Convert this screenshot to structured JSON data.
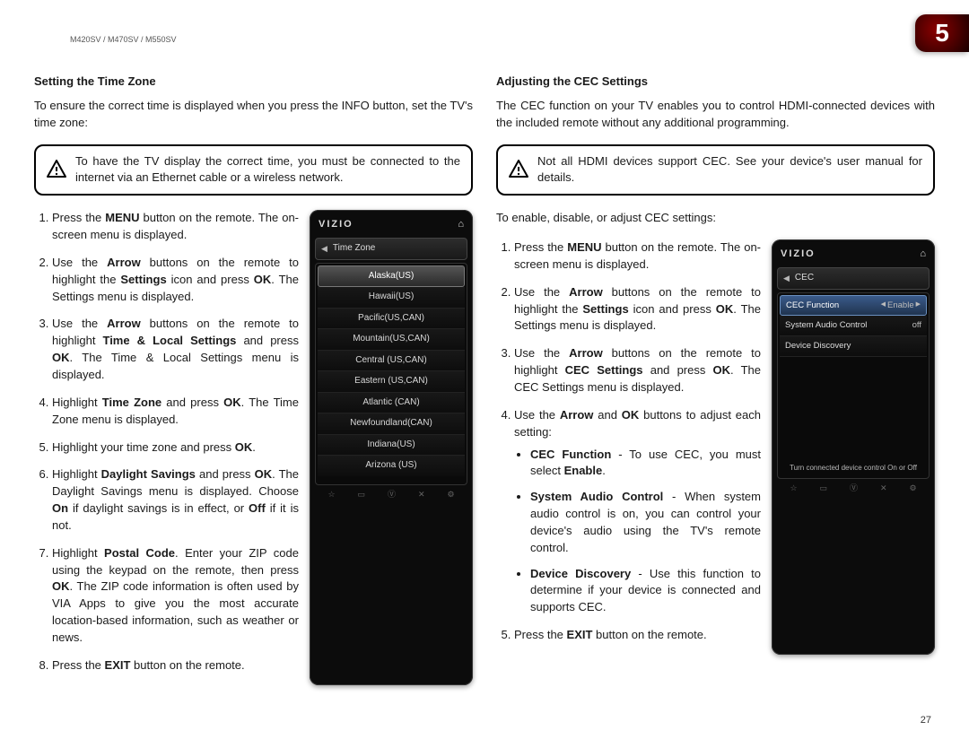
{
  "header": {
    "model_line": "M420SV / M470SV / M550SV",
    "chapter_number": "5",
    "page_number": "27"
  },
  "colors": {
    "tab_gradient_center": "#8b0000",
    "tab_gradient_edge": "#1a0000",
    "device_bg": "#0c0c0c",
    "device_selected_bg": "#3a5a8a"
  },
  "left": {
    "heading": "Setting the Time Zone",
    "intro": "To ensure the correct time is displayed when you press the INFO button, set the TV's time zone:",
    "warning": "To have the TV display the correct time, you must be connected to the internet via an Ethernet cable or a wireless network.",
    "device": {
      "brand": "VIZIO",
      "menu_title": "Time Zone",
      "items": [
        "Alaska(US)",
        "Hawaii(US)",
        "Pacific(US,CAN)",
        "Mountain(US,CAN)",
        "Central (US,CAN)",
        "Eastern (US,CAN)",
        "Atlantic (CAN)",
        "Newfoundland(CAN)",
        "Indiana(US)",
        "Arizona (US)"
      ],
      "selected_index": 0
    }
  },
  "right": {
    "heading": "Adjusting the CEC Settings",
    "intro": "The CEC function on your TV enables you to control HDMI-connected devices with the included remote without any additional programming.",
    "warning": "Not all HDMI devices support CEC. See your device's user manual for details.",
    "lead": "To enable, disable, or adjust CEC settings:",
    "device": {
      "brand": "VIZIO",
      "menu_title": "CEC",
      "rows": [
        {
          "label": "CEC Function",
          "value": "Enable",
          "selected": true
        },
        {
          "label": "System Audio Control",
          "value": "off",
          "selected": false
        },
        {
          "label": "Device Discovery",
          "value": "",
          "selected": false
        }
      ],
      "footnote": "Turn connected device control On or Off"
    }
  },
  "steps_left": {
    "s1a": "Press the ",
    "s1b": "MENU",
    "s1c": " button on the remote. The on-screen menu is displayed.",
    "s2a": "Use the ",
    "s2b": "Arrow",
    "s2c": " buttons on the remote to highlight the ",
    "s2d": "Settings",
    "s2e": " icon and press ",
    "s2f": "OK",
    "s2g": ". The Settings menu is displayed.",
    "s3a": "Use the ",
    "s3b": "Arrow",
    "s3c": " buttons on the remote to highlight ",
    "s3d": "Time & Local Settings",
    "s3e": " and press ",
    "s3f": "OK",
    "s3g": ". The Time & Local Settings menu is displayed.",
    "s4a": "Highlight ",
    "s4b": "Time Zone",
    "s4c": " and press ",
    "s4d": "OK",
    "s4e": ". The Time Zone menu is displayed.",
    "s5a": "Highlight your time zone and press ",
    "s5b": "OK",
    "s5c": ".",
    "s6a": "Highlight ",
    "s6b": "Daylight Savings",
    "s6c": " and press ",
    "s6d": "OK",
    "s6e": ". The Daylight Savings menu is displayed. Choose ",
    "s6f": "On",
    "s6g": " if daylight savings is in effect, or ",
    "s6h": "Off",
    "s6i": " if it is not.",
    "s7a": "Highlight ",
    "s7b": "Postal Code",
    "s7c": ". Enter your ZIP code using the keypad on the remote, then press ",
    "s7d": "OK",
    "s7e": ". The ZIP code information is often used by VIA Apps to give you the most accurate location-based information, such as weather or news.",
    "s8a": "Press the ",
    "s8b": "EXIT",
    "s8c": " button on the remote."
  },
  "steps_right": {
    "s1a": "Press the ",
    "s1b": "MENU",
    "s1c": " button on the remote. The on-screen menu is displayed.",
    "s2a": "Use the ",
    "s2b": "Arrow",
    "s2c": " buttons on the remote to highlight the ",
    "s2d": "Settings",
    "s2e": " icon and press ",
    "s2f": "OK",
    "s2g": ". The Settings menu is displayed.",
    "s3a": "Use the ",
    "s3b": "Arrow",
    "s3c": " buttons on the remote to highlight ",
    "s3d": "CEC Settings",
    "s3e": " and press ",
    "s3f": "OK",
    "s3g": ". The CEC Settings menu is displayed.",
    "s4a": "Use the ",
    "s4b": "Arrow",
    "s4c": " and ",
    "s4d": "OK",
    "s4e": " buttons to adjust each setting:",
    "b1a": "CEC Function",
    "b1b": " - To use CEC, you must select ",
    "b1c": "Enable",
    "b1d": ".",
    "b2a": "System Audio Control",
    "b2b": " - When system audio control is on, you can control your device's audio using the TV's remote control.",
    "b3a": "Device Discovery",
    "b3b": " - Use this function to determine if your device is connected and supports CEC.",
    "s5a": "Press the ",
    "s5b": "EXIT",
    "s5c": " button on the remote."
  }
}
